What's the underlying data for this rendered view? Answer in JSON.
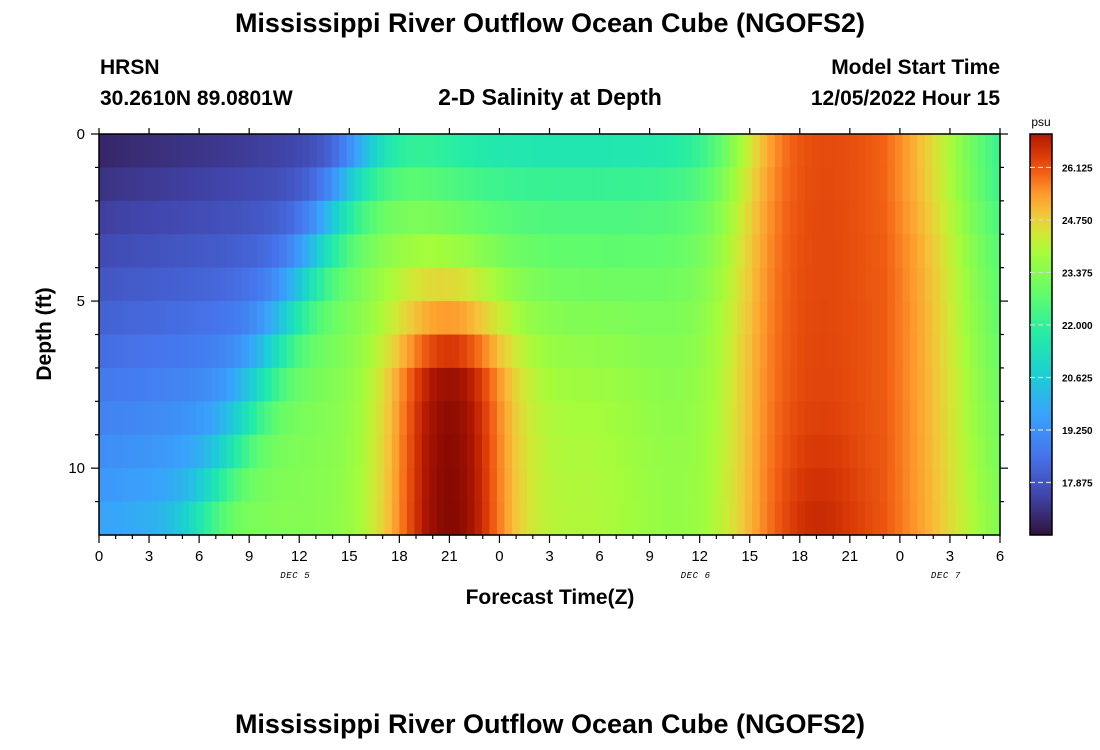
{
  "header": {
    "title": "Mississippi River Outflow Ocean Cube (NGOFS2)",
    "station": "HRSN",
    "coords": "30.2610N  89.0801W",
    "subtitle": "2-D Salinity at Depth",
    "model_start_label": "Model Start Time",
    "model_start_value": "12/05/2022 Hour 15"
  },
  "footer": {
    "title": "Mississippi River Outflow Ocean Cube (NGOFS2)"
  },
  "chart_data": {
    "type": "heatmap",
    "title": "2-D Salinity at Depth",
    "xlabel": "Forecast Time(Z)",
    "ylabel": "Depth (ft)",
    "x_range_hours": [
      0,
      54
    ],
    "x_tick_labels": [
      "0",
      "3",
      "6",
      "9",
      "12",
      "15",
      "18",
      "21",
      "0",
      "3",
      "6",
      "9",
      "12",
      "15",
      "18",
      "21",
      "0",
      "3",
      "6"
    ],
    "date_labels": [
      {
        "label": "DEC 5",
        "hour": 12
      },
      {
        "label": "DEC 6",
        "hour": 36
      },
      {
        "label": "DEC 7",
        "hour": 51
      }
    ],
    "depth_range_ft": [
      0,
      12
    ],
    "y_tick_labels": [
      "0",
      "5",
      "10"
    ],
    "y_ticks": [
      0,
      5,
      10
    ],
    "depth_levels_ft": [
      0,
      1,
      2,
      3,
      4,
      5,
      6,
      7,
      8,
      9,
      10,
      11
    ],
    "colorbar": {
      "unit": "psu",
      "min": 16.5,
      "max": 27.0,
      "tick_values": [
        17.875,
        19.25,
        20.625,
        22.0,
        23.375,
        24.75,
        26.125
      ],
      "tick_labels": [
        "17.875",
        "19.250",
        "20.625",
        "22.000",
        "23.375",
        "24.750",
        "26.125"
      ]
    }
  }
}
